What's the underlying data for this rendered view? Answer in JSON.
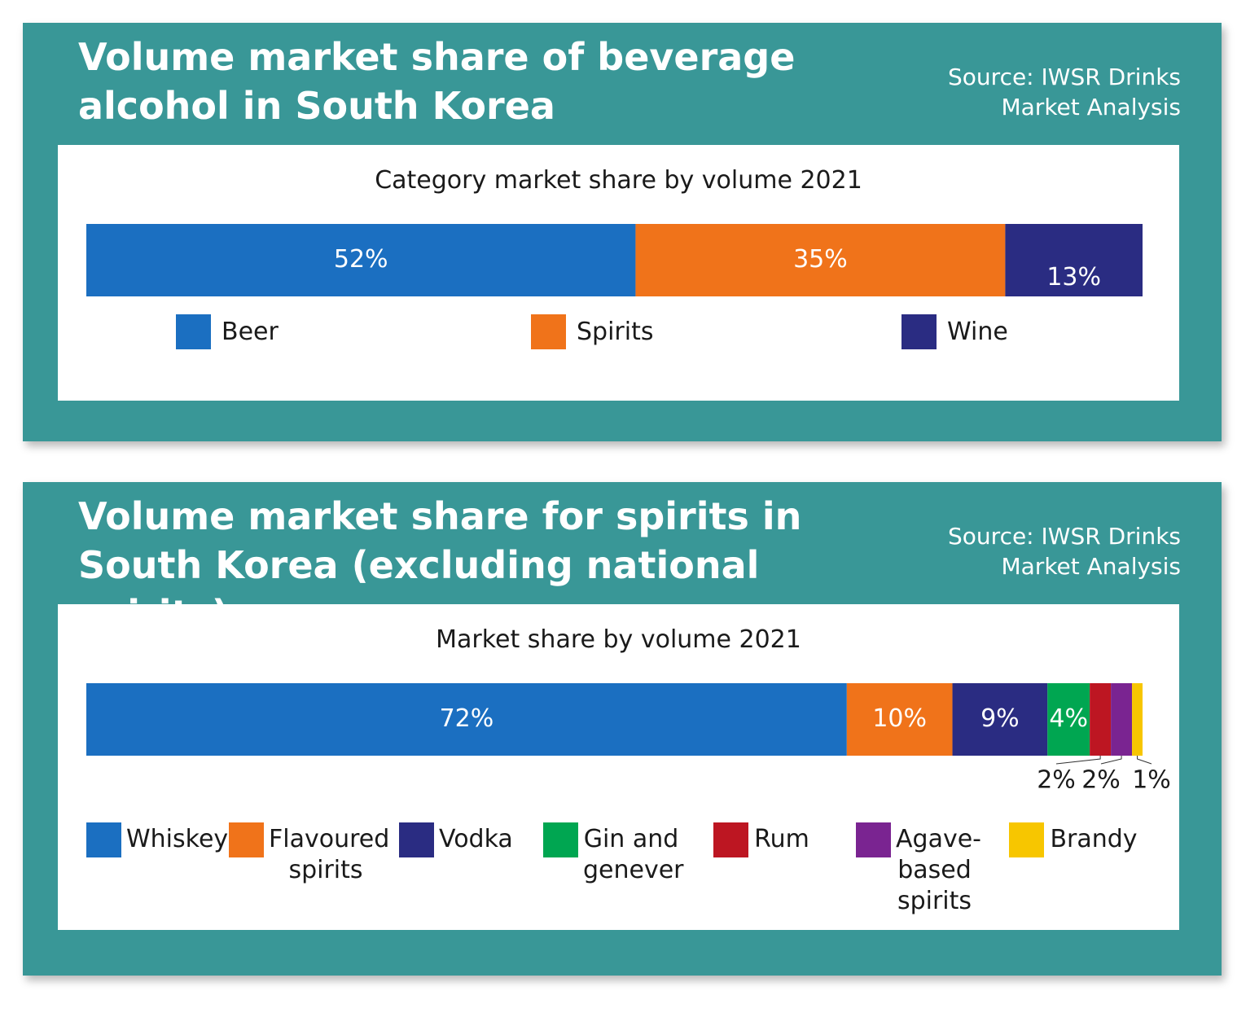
{
  "panels": [
    {
      "title": "Volume market share of beverage\nalcohol in South Korea",
      "source": "Source: IWSR Drinks\nMarket Analysis"
    },
    {
      "title": "Volume market share for spirits in\nSouth Korea (excluding national spirits)",
      "source": "Source: IWSR Drinks\nMarket Analysis"
    }
  ],
  "colors": {
    "background": "#399797",
    "Beer": "#1B6FC1",
    "Spirits": "#F0731A",
    "Wine": "#2A2C82",
    "Whiskey": "#1B6FC1",
    "Flavoured spirits": "#F0731A",
    "Vodka": "#2A2C82",
    "Gin and genever": "#00A651",
    "Rum": "#BD1622",
    "Agave-based spirits": "#7A2491",
    "Brandy": "#F7C600"
  },
  "chart_data": [
    {
      "type": "bar",
      "orientation": "horizontal-stacked",
      "title": "Category market share by volume 2021",
      "categories": [
        "Beer",
        "Spirits",
        "Wine"
      ],
      "values": [
        52,
        35,
        13
      ],
      "labels": [
        "52%",
        "35%",
        "13%"
      ],
      "legend": {
        "placement": "bottom",
        "entries": [
          "Beer",
          "Spirits",
          "Wine"
        ]
      },
      "xlim": [
        0,
        100
      ]
    },
    {
      "type": "bar",
      "orientation": "horizontal-stacked",
      "title": "Market share by volume 2021",
      "categories": [
        "Whiskey",
        "Flavoured spirits",
        "Vodka",
        "Gin and genever",
        "Rum",
        "Agave-based spirits",
        "Brandy"
      ],
      "values": [
        72,
        10,
        9,
        4,
        2,
        2,
        1
      ],
      "labels": [
        "72%",
        "10%",
        "9%",
        "4%",
        "2%",
        "2%",
        "1%"
      ],
      "legend": {
        "placement": "bottom",
        "entries": [
          "Whiskey",
          "Flavoured\nspirits",
          "Vodka",
          "Gin and\ngenever",
          "Rum",
          "Agave-\nbased\nspirits",
          "Brandy"
        ]
      },
      "xlim": [
        0,
        100
      ]
    }
  ]
}
